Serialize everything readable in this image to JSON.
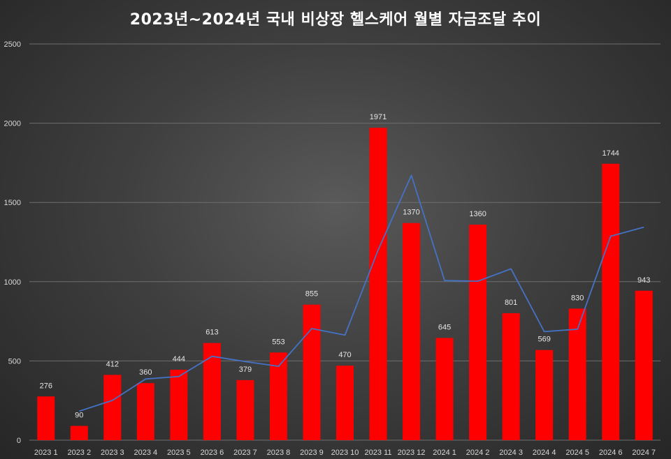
{
  "chart_data": {
    "type": "bar",
    "title": "2023년~2024년 국내 비상장 헬스케어 월별 자금조달 추이",
    "xlabel": "",
    "ylabel": "",
    "ylim": [
      0,
      2500
    ],
    "yticks": [
      0,
      500,
      1000,
      1500,
      2000,
      2500
    ],
    "grid": true,
    "categories": [
      "2023 1",
      "2023 2",
      "2023 3",
      "2023 4",
      "2023 5",
      "2023 6",
      "2023 7",
      "2023 8",
      "2023 9",
      "2023 10",
      "2023 11",
      "2023 12",
      "2024 1",
      "2024 2",
      "2024 3",
      "2024 4",
      "2024 5",
      "2024 6",
      "2024 7"
    ],
    "series": [
      {
        "type": "bar",
        "values": [
          276,
          90,
          412,
          360,
          444,
          613,
          379,
          553,
          855,
          470,
          1971,
          1370,
          645,
          1360,
          801,
          569,
          830,
          1744,
          943
        ],
        "color": "#ff0000"
      },
      {
        "type": "line",
        "values": [
          null,
          183,
          251,
          386,
          402,
          529,
          496,
          466,
          704,
          663,
          1200,
          1671,
          1007,
          1003,
          1081,
          685,
          700,
          1287,
          1344
        ],
        "color": "#4472c4"
      }
    ]
  }
}
